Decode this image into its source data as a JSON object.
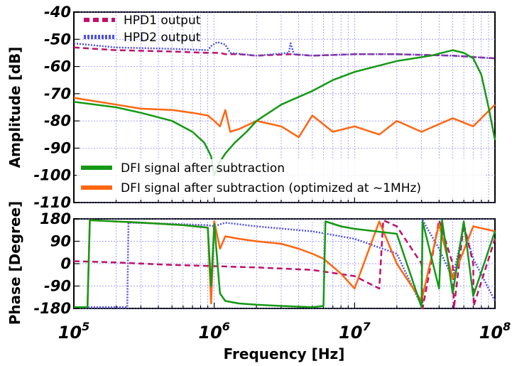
{
  "chart_data": [
    {
      "panel": "amplitude",
      "type": "line",
      "ylabel": "Amplitude [dB]",
      "xscale": "log",
      "xlim": [
        100000,
        100000000
      ],
      "ylim": [
        -110,
        -40
      ],
      "yticks": [
        -40,
        -50,
        -60,
        -70,
        -80,
        -90,
        -100,
        -110
      ],
      "grid": true,
      "legend_top_position": "top-left",
      "legend_bottom_position": "bottom-left",
      "series": [
        {
          "name": "HPD1 output",
          "color": "#c0106a",
          "dash": "dashed",
          "x": [
            100000,
            200000,
            500000,
            900000,
            1000000,
            1100000,
            1200000,
            1500000,
            2000000,
            3500000,
            5000000,
            10000000,
            20000000,
            50000000,
            70000000,
            100000000
          ],
          "y": [
            -53,
            -54,
            -54.5,
            -55,
            -55,
            -55,
            -55.5,
            -55.5,
            -56,
            -55.5,
            -56,
            -55.5,
            -55.5,
            -56,
            -56.5,
            -57
          ]
        },
        {
          "name": "HPD2 output",
          "color": "#5050e0",
          "dash": "dotted",
          "x": [
            100000,
            200000,
            500000,
            900000,
            950000,
            1050000,
            1200000,
            1300000,
            1600000,
            2000000,
            3400000,
            3500000,
            3700000,
            5000000,
            10000000,
            20000000,
            50000000,
            100000000
          ],
          "y": [
            -51.5,
            -53,
            -53.5,
            -54,
            -52.5,
            -51,
            -52,
            -55,
            -55.5,
            -56,
            -55,
            -51.5,
            -55.5,
            -56,
            -55.5,
            -55.5,
            -56,
            -57
          ]
        },
        {
          "name": "DFI signal after subtraction",
          "color": "#149914",
          "dash": "solid",
          "x": [
            100000,
            200000,
            300000,
            500000,
            700000,
            850000,
            950000,
            1000000,
            1050000,
            1100000,
            1200000,
            1400000,
            1700000,
            2000000,
            3000000,
            5000000,
            7000000,
            10000000,
            20000000,
            35000000,
            50000000,
            60000000,
            70000000,
            80000000,
            90000000,
            100000000
          ],
          "y": [
            -73,
            -75,
            -77,
            -80,
            -84,
            -88,
            -93,
            -100,
            -97,
            -95,
            -92,
            -88,
            -84,
            -80,
            -74,
            -69,
            -65,
            -62,
            -58,
            -56,
            -54,
            -55,
            -57,
            -63,
            -75,
            -87
          ]
        },
        {
          "name": "DFI signal after subtraction (optimized at ~1MHz)",
          "color": "#ff6610",
          "dash": "solid",
          "x": [
            100000,
            200000,
            300000,
            500000,
            700000,
            900000,
            1000000,
            1100000,
            1200000,
            1300000,
            1500000,
            2000000,
            3000000,
            4000000,
            5000000,
            7000000,
            10000000,
            15000000,
            20000000,
            30000000,
            50000000,
            70000000,
            100000000
          ],
          "y": [
            -71.5,
            -74,
            -75.5,
            -76,
            -77,
            -78,
            -80,
            -82,
            -76,
            -84,
            -83,
            -80,
            -82,
            -86,
            -78,
            -84,
            -82,
            -85,
            -80,
            -84,
            -79,
            -82,
            -74
          ]
        }
      ]
    },
    {
      "panel": "phase",
      "type": "line",
      "xlabel": "Frequency [Hz]",
      "ylabel": "Phase [Degree]",
      "xscale": "log",
      "xlim": [
        100000,
        100000000
      ],
      "xticks": [
        "10",
        "10",
        "10",
        "10"
      ],
      "xtick_exponents": [
        "5",
        "6",
        "7",
        "8"
      ],
      "ylim": [
        -180,
        180
      ],
      "yticks": [
        180,
        90,
        0,
        -90,
        -180
      ],
      "grid": true,
      "series": [
        {
          "name": "HPD1 output",
          "color": "#c0106a",
          "dash": "dashed",
          "x": [
            100000,
            200000,
            500000,
            1000000,
            2000000,
            5000000,
            10000000,
            15000000,
            16000000,
            20000000,
            30000000,
            30500000,
            40000000,
            50000000,
            51000000,
            60000000,
            70000000,
            70500000,
            100000000
          ],
          "y": [
            10,
            5,
            -5,
            -10,
            -15,
            -25,
            -50,
            -100,
            175,
            150,
            0,
            -180,
            175,
            0,
            -180,
            160,
            0,
            -170,
            100
          ]
        },
        {
          "name": "HPD2 output",
          "color": "#5050e0",
          "dash": "dotted",
          "x": [
            100000,
            240000,
            245000,
            500000,
            900000,
            1000000,
            1200000,
            2000000,
            5000000,
            10000000,
            20000000,
            30000000,
            30500000,
            40000000,
            50000000,
            60000000,
            70000000,
            100000000
          ],
          "y": [
            -175,
            -175,
            165,
            160,
            155,
            150,
            165,
            150,
            130,
            100,
            40,
            -170,
            175,
            60,
            -60,
            150,
            20,
            -150
          ]
        },
        {
          "name": "DFI signal after subtraction",
          "color": "#149914",
          "dash": "solid",
          "x": [
            100000,
            125000,
            130000,
            300000,
            600000,
            900000,
            950000,
            1000000,
            1100000,
            1200000,
            1500000,
            2000000,
            3000000,
            5000000,
            6000000,
            6200000,
            8000000,
            10000000,
            20000000,
            30000000,
            30500000,
            40000000,
            42000000,
            50000000,
            60000000,
            70000000,
            100000000
          ],
          "y": [
            -175,
            -175,
            175,
            165,
            155,
            145,
            -90,
            160,
            -120,
            -150,
            -160,
            -165,
            -170,
            -175,
            -170,
            170,
            150,
            140,
            120,
            -175,
            170,
            -100,
            175,
            -120,
            170,
            -130,
            130
          ]
        },
        {
          "name": "DFI signal after subtraction (optimized at ~1MHz)",
          "color": "#ff6610",
          "dash": "solid",
          "x": [
            100000,
            125000,
            130000,
            300000,
            600000,
            900000,
            950000,
            1000000,
            1100000,
            1200000,
            1500000,
            2000000,
            3000000,
            4000000,
            5000000,
            6000000,
            8000000,
            10000000,
            15000000,
            20000000,
            30000000,
            40000000,
            50000000,
            70000000,
            100000000
          ],
          "y": [
            -175,
            -175,
            175,
            165,
            155,
            145,
            -160,
            170,
            60,
            110,
            100,
            90,
            80,
            60,
            40,
            20,
            -40,
            -100,
            170,
            0,
            -150,
            160,
            -60,
            150,
            130
          ]
        }
      ]
    }
  ]
}
